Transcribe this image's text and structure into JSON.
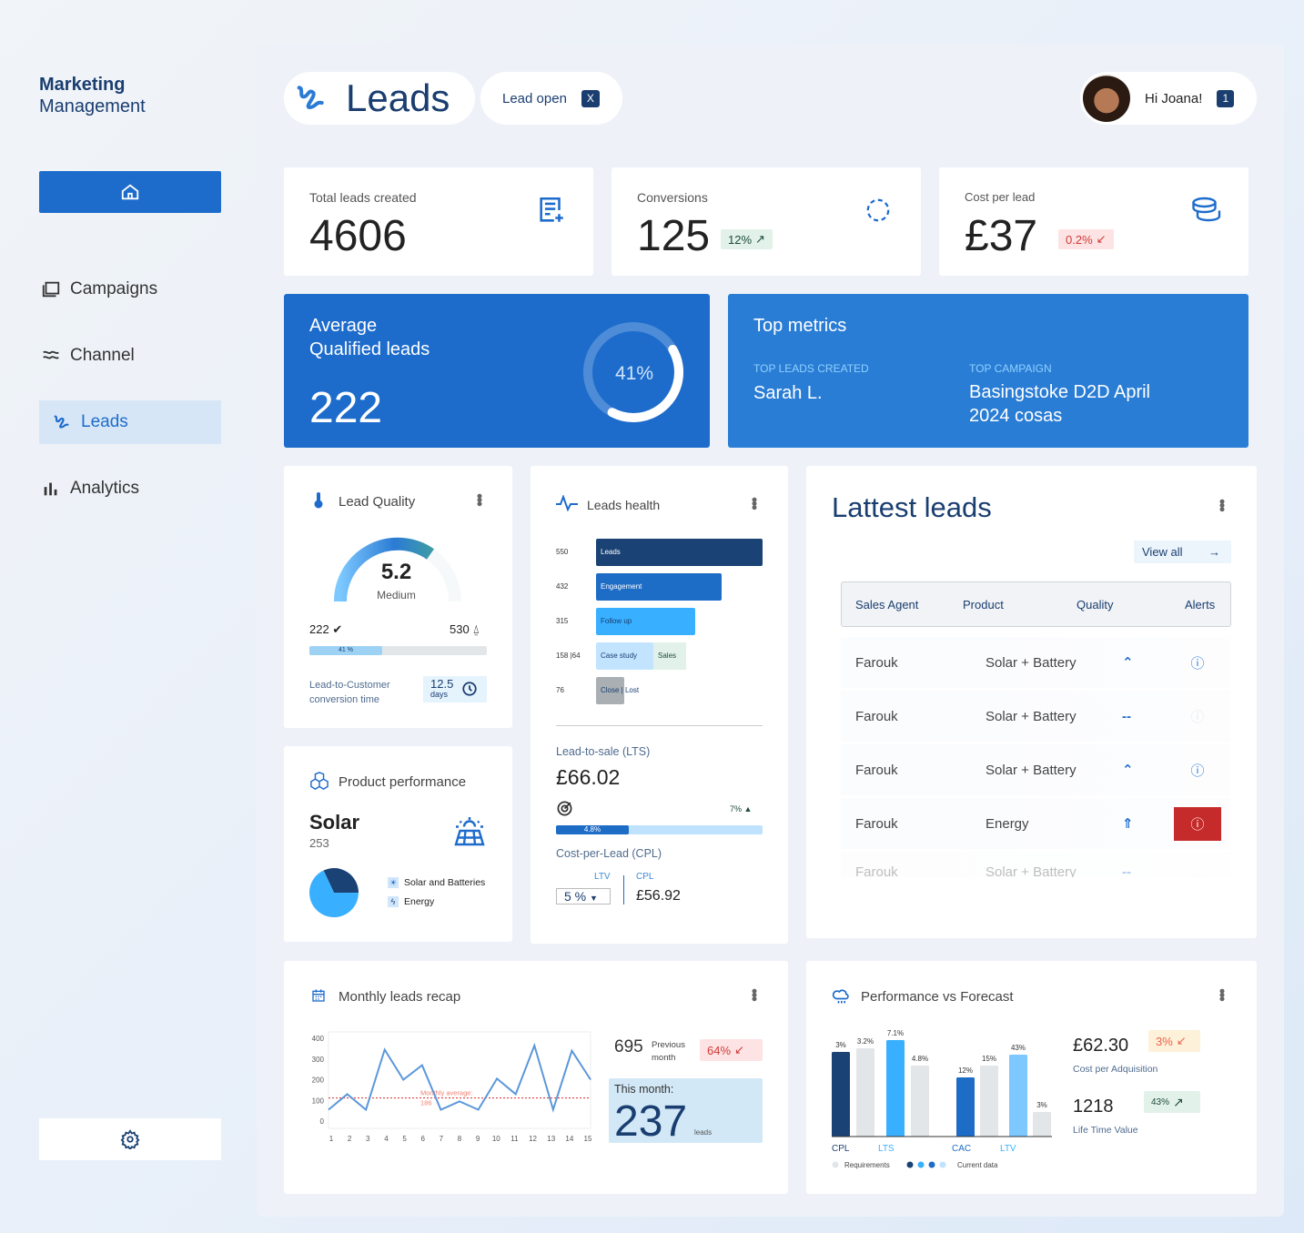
{
  "sidebar": {
    "brand_line1": "Marketing",
    "brand_line2": "Management",
    "items": [
      {
        "label": "Campaigns",
        "icon": "campaigns-icon"
      },
      {
        "label": "Channel",
        "icon": "channel-icon"
      },
      {
        "label": "Leads",
        "icon": "leads-icon",
        "active": true
      },
      {
        "label": "Analytics",
        "icon": "analytics-icon"
      }
    ]
  },
  "header": {
    "title": "Leads",
    "tag_label": "Lead open",
    "tag_close": "X",
    "greeting": "Hi Joana!",
    "notification_count": "1"
  },
  "stats": [
    {
      "label": "Total leads created",
      "value": "4606"
    },
    {
      "label": "Conversions",
      "value": "125",
      "badge": "12%",
      "trend": "up"
    },
    {
      "label": "Cost per lead",
      "value": "£37",
      "badge": "0.2%",
      "trend": "down"
    }
  ],
  "avg_qualified": {
    "title_line1": "Average",
    "title_line2": "Qualified leads",
    "value": "222",
    "percent_label": "41%",
    "percent": 41
  },
  "top_metrics": {
    "title": "Top metrics",
    "col1_label": "TOP LEADS CREATED",
    "col1_value": "Sarah L.",
    "col2_label": "TOP CAMPAIGN",
    "col2_value_line1": "Basingstoke D2D April",
    "col2_value_line2": "2024 cosas"
  },
  "lead_quality": {
    "title": "Lead Quality",
    "score": "5.2",
    "score_label": "Medium",
    "left_value": "222",
    "right_value": "530",
    "progress_label": "41 %",
    "progress": 41,
    "conv_label_line1": "Lead-to-Customer",
    "conv_label_line2": "conversion time",
    "conv_value": "12.5",
    "conv_unit": "days"
  },
  "product_performance": {
    "title": "Product performance",
    "product": "Solar",
    "count": "253",
    "legend": [
      {
        "label": "Solar and Batteries",
        "color": "#37b0ff"
      },
      {
        "label": "Energy",
        "color": "#1a3f70"
      }
    ],
    "pie": [
      {
        "label": "Solar and Batteries",
        "share": 68
      },
      {
        "label": "Energy",
        "share": 32
      }
    ]
  },
  "leads_health": {
    "title": "Leads health",
    "funnel": [
      {
        "value": "550",
        "label": "Leads",
        "color": "#1a4275"
      },
      {
        "value": "432",
        "label": "Engagement",
        "color": "#1d6cc6"
      },
      {
        "value": "315",
        "label": "Follow up",
        "color": "#38b0ff"
      },
      {
        "value": "158",
        "value2": "64",
        "label": "Case study",
        "label2": "Sales",
        "color": "#c2e4ff",
        "color2": "#e2f1ea"
      },
      {
        "value": "76",
        "label": "Close",
        "label2": "Lost",
        "color": "#a9afb3"
      }
    ],
    "lts_label": "Lead-to-sale (LTS)",
    "lts_value": "£66.02",
    "lts_change": "7%",
    "lts_progress_label": "4.8%",
    "lts_progress": 4.8,
    "cpl_label": "Cost-per-Lead (CPL)",
    "ltv_label": "LTV",
    "ltv_select": "5 %",
    "cpl_sub_label": "CPL",
    "cpl_value": "£56.92"
  },
  "latest_leads": {
    "title": "Lattest leads",
    "view_all": "View all",
    "columns": [
      "Sales Agent",
      "Product",
      "Quality",
      "Alerts"
    ],
    "rows": [
      {
        "agent": "Farouk",
        "product": "Solar + Battery",
        "quality": "up",
        "alert": "info"
      },
      {
        "agent": "Farouk",
        "product": "Solar + Battery",
        "quality": "neutral",
        "alert": "none"
      },
      {
        "agent": "Farouk",
        "product": "Solar + Battery",
        "quality": "up",
        "alert": "info"
      },
      {
        "agent": "Farouk",
        "product": "Energy",
        "quality": "double-up",
        "alert": "critical"
      },
      {
        "agent": "Farouk",
        "product": "Solar + Battery",
        "quality": "neutral",
        "alert": "none"
      }
    ]
  },
  "monthly": {
    "title": "Monthly leads recap",
    "previous_value": "695",
    "previous_label_line1": "Previous",
    "previous_label_line2": "month",
    "change": "64%",
    "this_month_label": "This month:",
    "this_month_value": "237",
    "this_month_unit": "leads"
  },
  "forecast": {
    "title": "Performance vs Forecast",
    "cpa_value": "£62.30",
    "cpa_change": "3%",
    "cpa_label": "Cost per Adquisition",
    "ltv_value": "1218",
    "ltv_change": "43%",
    "ltv_label": "Life Time Value",
    "legend_requirements": "Requirements",
    "legend_current": "Current data"
  },
  "chart_data": [
    {
      "type": "line",
      "title": "Monthly leads recap",
      "x": [
        1,
        2,
        3,
        4,
        5,
        6,
        7,
        8,
        9,
        10,
        11,
        12,
        13,
        14,
        15
      ],
      "xticks": [
        "1",
        "2",
        "3",
        "4",
        "5",
        "6",
        "7",
        "8",
        "9",
        "10",
        "11",
        "12",
        "13",
        "14",
        "15"
      ],
      "values": [
        55,
        130,
        55,
        345,
        200,
        270,
        55,
        95,
        55,
        205,
        130,
        365,
        55,
        340,
        200
      ],
      "ylim": [
        0,
        400
      ],
      "yticks": [
        "0",
        "100",
        "200",
        "300",
        "400"
      ],
      "average": 186,
      "average_label": "Monthly average:",
      "average_value": "186",
      "color": "#5b97d9"
    },
    {
      "type": "bar",
      "title": "Performance vs Forecast",
      "categories": [
        "CPL",
        "LTS",
        "CAC",
        "LTV"
      ],
      "bars": [
        {
          "group": "CPL",
          "series": "Current data",
          "label": "3%",
          "color": "#1a4275"
        },
        {
          "group": "CPL",
          "series": "Requirements",
          "label": "3.2%",
          "color": "#e3e6e9"
        },
        {
          "group": "LTS",
          "series": "Current data",
          "label": "7.1%",
          "color": "#38b0ff"
        },
        {
          "group": "LTS",
          "series": "Requirements",
          "label": "4.8%",
          "color": "#e3e6e9"
        },
        {
          "group": "CAC",
          "series": "Current data",
          "label": "12%",
          "color": "#1d6cc6"
        },
        {
          "group": "CAC",
          "series": "Requirements",
          "label": "15%",
          "color": "#e3e6e9"
        },
        {
          "group": "LTV",
          "series": "Current data",
          "label": "43%",
          "color": "#7cc8ff"
        },
        {
          "group": "LTV",
          "series": "Requirements",
          "label": "3%",
          "color": "#e3e6e9"
        }
      ],
      "category_colors": [
        "#1a4275",
        "#38b0ff",
        "#1d6cc6",
        "#38b0ff"
      ],
      "legend": [
        "Requirements",
        "Current data"
      ],
      "legend_placement": "bottom"
    }
  ]
}
